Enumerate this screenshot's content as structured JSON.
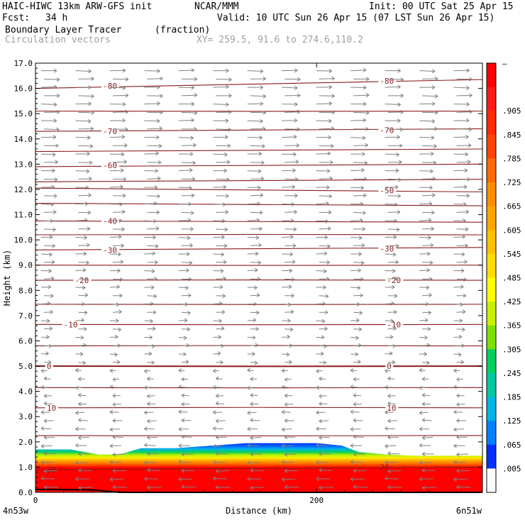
{
  "header": {
    "model": "HAIC-HIWC 13km ARW-GFS init",
    "org": "NCAR/MMM",
    "init": "Init: 00 UTC Sat 25 Apr 15",
    "fcst_label": "Fcst:",
    "fcst_value": "34 h",
    "valid": "Valid: 10 UTC Sun 26 Apr 15 (07 LST Sun 26 Apr 15)",
    "field1": "Boundary Layer Tracer",
    "field1_units": "(fraction)",
    "field2": "Circulation vectors",
    "xy": "XY= 259.5, 91.6 to 274.6,110.2"
  },
  "colors": {
    "contour": "#8b1a1a",
    "vector": "#808080",
    "frame": "#000000"
  },
  "chart_data": {
    "type": "heatmap",
    "title": "Boundary Layer Tracer (fraction)",
    "xlabel": "Distance (km)",
    "ylabel": "Height (km)",
    "xlim": [
      0,
      318
    ],
    "ylim": [
      0,
      17
    ],
    "x_ticks": [
      0,
      200
    ],
    "x_tick_labels": [
      "0",
      "200"
    ],
    "x_endpoint_labels": [
      "4n53w",
      "6n51w"
    ],
    "y_ticks": [
      0,
      1,
      2,
      3,
      4,
      5,
      6,
      7,
      8,
      9,
      10,
      11,
      12,
      13,
      14,
      15,
      16,
      17
    ],
    "y_tick_labels": [
      "0.0",
      "1.0",
      "2.0",
      "3.0",
      "4.0",
      "5.0",
      "6.0",
      "7.0",
      "8.0",
      "9.0",
      "10.0",
      "11.0",
      "12.0",
      "13.0",
      "14.0",
      "15.0",
      "16.0",
      "17.0"
    ],
    "grid": false,
    "colorbar": {
      "labels": [
        "–",
        ".905",
        ".845",
        ".785",
        ".725",
        ".665",
        ".605",
        ".545",
        ".485",
        ".425",
        ".365",
        ".305",
        ".245",
        ".185",
        ".125",
        ".065",
        ".005"
      ],
      "colors": [
        "#ff0000",
        "#ff1a1a",
        "#ff2a00",
        "#ff4500",
        "#ff6a00",
        "#ff8c00",
        "#ffa500",
        "#ffc000",
        "#ffdd00",
        "#ffff00",
        "#c8f000",
        "#7ee000",
        "#00d060",
        "#00c8a0",
        "#00b4e6",
        "#0080ff",
        "#0030ff",
        "#ffffff"
      ]
    },
    "boundary_layer_top": {
      "x": [
        0,
        25,
        45,
        60,
        75,
        100,
        150,
        200,
        218,
        230,
        250,
        270,
        318
      ],
      "height": [
        1.7,
        1.7,
        1.5,
        1.5,
        1.75,
        1.75,
        1.95,
        1.95,
        1.85,
        1.6,
        1.5,
        1.45,
        1.45
      ]
    },
    "temperature_contours": [
      {
        "label": "-80",
        "y_left": 16.0,
        "y_right": 16.35
      },
      {
        "label": "",
        "y_left": 15.1,
        "y_right": 15.1
      },
      {
        "label": "-70",
        "y_left": 14.3,
        "y_right": 14.4
      },
      {
        "label": "",
        "y_left": 13.5,
        "y_right": 13.6
      },
      {
        "label": "-60",
        "y_left": 12.9,
        "y_right": 13.0
      },
      {
        "label": "",
        "y_left": 12.3,
        "y_right": 12.4
      },
      {
        "label": "-50",
        "y_left": 12.05,
        "y_right": 11.9
      },
      {
        "label": "",
        "y_left": 11.45,
        "y_right": 11.35
      },
      {
        "label": "-40",
        "y_left": 10.75,
        "y_right": 10.7
      },
      {
        "label": "",
        "y_left": 10.2,
        "y_right": 10.2
      },
      {
        "label": "-30",
        "y_left": 9.6,
        "y_right": 9.7
      },
      {
        "label": "",
        "y_left": 9.0,
        "y_right": 9.0
      },
      {
        "label": "-20",
        "y_left": 8.4,
        "y_right": 8.4
      },
      {
        "label": "",
        "y_left": 7.45,
        "y_right": 7.45
      },
      {
        "label": "-10",
        "y_left": 6.65,
        "y_right": 6.65
      },
      {
        "label": "",
        "y_left": 5.8,
        "y_right": 5.8
      },
      {
        "label": "0",
        "y_left": 5.0,
        "y_right": 5.0
      },
      {
        "label": "",
        "y_left": 4.15,
        "y_right": 4.15
      },
      {
        "label": "10",
        "y_left": 3.35,
        "y_right": 3.35
      },
      {
        "label": "",
        "y_left": 2.25,
        "y_right": 2.25
      },
      {
        "label": "20",
        "y_left": 0.9,
        "y_right": 1.0
      }
    ],
    "contour_label_positions": [
      {
        "text": "-80",
        "x": [
          48,
          245
        ],
        "y": [
          16.1,
          16.3
        ]
      },
      {
        "text": "-70",
        "x": [
          48,
          245
        ],
        "y": [
          14.3,
          14.35
        ]
      },
      {
        "text": "-60",
        "x": [
          48
        ],
        "y": [
          12.95
        ]
      },
      {
        "text": "-50",
        "x": [
          245
        ],
        "y": [
          11.95
        ]
      },
      {
        "text": "-40",
        "x": [
          48
        ],
        "y": [
          10.75
        ]
      },
      {
        "text": "-30",
        "x": [
          48,
          245
        ],
        "y": [
          9.6,
          9.65
        ]
      },
      {
        "text": "-20",
        "x": [
          28,
          250
        ],
        "y": [
          8.4,
          8.4
        ]
      },
      {
        "text": "-10",
        "x": [
          20,
          250
        ],
        "y": [
          6.65,
          6.65
        ]
      },
      {
        "text": "0",
        "x": [
          8,
          250
        ],
        "y": [
          5.0,
          5.0
        ]
      },
      {
        "text": "10",
        "x": [
          8,
          250
        ],
        "y": [
          3.35,
          3.35
        ]
      },
      {
        "text": "20",
        "x": [
          8,
          245
        ],
        "y": [
          0.9,
          1.0
        ]
      }
    ],
    "wind_regimes": [
      {
        "layer": [
          5.2,
          17.0
        ],
        "direction": "westerly (left-to-right)"
      },
      {
        "layer": [
          0.0,
          4.9
        ],
        "direction": "easterly (right-to-left)"
      }
    ]
  }
}
